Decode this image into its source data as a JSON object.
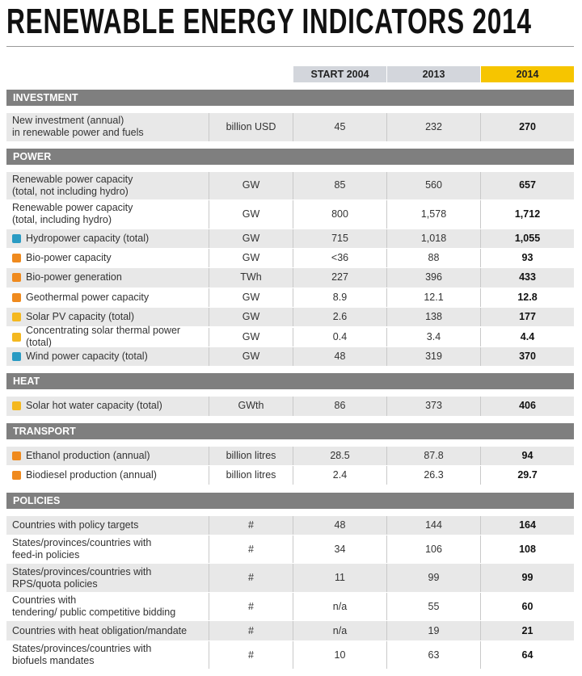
{
  "title": "RENEWABLE ENERGY INDICATORS 2014",
  "header": [
    "START 2004",
    "2013",
    "2014"
  ],
  "sections": [
    {
      "name": "INVESTMENT",
      "rows": [
        [
          "New investment (annual)\nin renewable power and fuels",
          "billion USD",
          "45",
          "232",
          "270"
        ]
      ]
    },
    {
      "name": "POWER",
      "rows": [
        [
          "Renewable power capacity\n(total, not including hydro)",
          "GW",
          "85",
          "560",
          "657"
        ],
        [
          "Renewable power capacity\n(total, including hydro)",
          "GW",
          "800",
          "1,578",
          "1,712"
        ],
        [
          "Hydropower capacity (total)",
          "GW",
          "715",
          "1,018",
          "1,055"
        ],
        [
          "Bio-power capacity",
          "GW",
          "<36",
          "88",
          "93"
        ],
        [
          "Bio-power generation",
          "TWh",
          "227",
          "396",
          "433"
        ],
        [
          "Geothermal power capacity",
          "GW",
          "8.9",
          "12.1",
          "12.8"
        ],
        [
          "Solar PV capacity (total)",
          "GW",
          "2.6",
          "138",
          "177"
        ],
        [
          "Concentrating solar thermal power (total)",
          "GW",
          "0.4",
          "3.4",
          "4.4"
        ],
        [
          "Wind power capacity (total)",
          "GW",
          "48",
          "319",
          "370"
        ]
      ]
    },
    {
      "name": "HEAT",
      "rows": [
        [
          "Solar hot water capacity (total)",
          "GWth",
          "86",
          "373",
          "406"
        ]
      ]
    },
    {
      "name": "TRANSPORT",
      "rows": [
        [
          "Ethanol production (annual)",
          "billion litres",
          "28.5",
          "87.8",
          "94"
        ],
        [
          "Biodiesel production (annual)",
          "billion litres",
          "2.4",
          "26.3",
          "29.7"
        ]
      ]
    },
    {
      "name": "POLICIES",
      "rows": [
        [
          "Countries with policy targets",
          "#",
          "48",
          "144",
          "164"
        ],
        [
          "States/provinces/countries with\nfeed-in policies",
          "#",
          "34",
          "106",
          "108"
        ],
        [
          "States/provinces/countries with\nRPS/quota policies",
          "#",
          "11",
          "99",
          "99"
        ],
        [
          "Countries with\ntendering/ public competitive bidding",
          "#",
          "n/a",
          "55",
          "60"
        ],
        [
          "Countries with heat obligation/mandate",
          "#",
          "n/a",
          "19",
          "21"
        ],
        [
          "States/provinces/countries with\nbiofuels mandates",
          "#",
          "10",
          "63",
          "64"
        ]
      ]
    }
  ]
}
